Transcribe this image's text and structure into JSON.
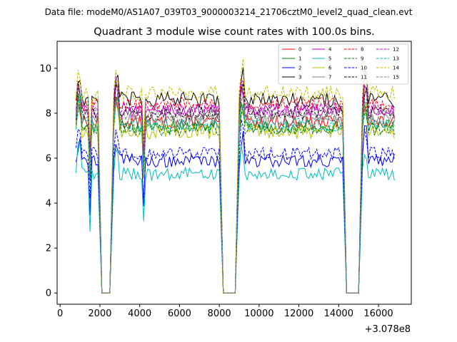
{
  "suptitle": "Data file: modeM0/AS1A07_039T03_9000003214_21706cztM0_level2_quad_clean.evt",
  "chart_data": {
    "type": "line",
    "title": "Quadrant 3 module wise count rates with 100.0s bins.",
    "xlabel": "",
    "ylabel": "",
    "x_offset_label": "+3.078e8",
    "xlim": [
      -150,
      17650
    ],
    "ylim": [
      -0.5,
      11.2
    ],
    "x_ticks": [
      0,
      2000,
      4000,
      6000,
      8000,
      10000,
      12000,
      14000,
      16000
    ],
    "x_tick_labels": [
      "0",
      "2000",
      "4000",
      "6000",
      "8000",
      "10000",
      "12000",
      "14000",
      "16000"
    ],
    "y_ticks": [
      0,
      2,
      4,
      6,
      8,
      10
    ],
    "y_tick_labels": [
      "0",
      "2",
      "4",
      "6",
      "8",
      "10"
    ],
    "x_start": 800,
    "x_end": 16800,
    "x_step": 100,
    "segments": [
      [
        800,
        1900
      ],
      [
        2700,
        8000
      ],
      [
        9000,
        14200
      ],
      [
        15200,
        16800
      ]
    ],
    "gaps": [
      [
        2100,
        2500
      ],
      [
        8200,
        8800
      ],
      [
        14400,
        15000
      ]
    ],
    "dips": [
      1500,
      4200
    ],
    "legend_location": "top-right",
    "series": [
      {
        "name": "0",
        "color": "#ff0000",
        "dash": "solid",
        "level": 7.6,
        "noise": 0.3
      },
      {
        "name": "1",
        "color": "#008000",
        "dash": "solid",
        "level": 7.4,
        "noise": 0.3
      },
      {
        "name": "2",
        "color": "#0000ff",
        "dash": "solid",
        "level": 5.9,
        "noise": 0.3
      },
      {
        "name": "3",
        "color": "#000000",
        "dash": "solid",
        "level": 8.6,
        "noise": 0.35
      },
      {
        "name": "4",
        "color": "#bf00bf",
        "dash": "solid",
        "level": 8.1,
        "noise": 0.3
      },
      {
        "name": "5",
        "color": "#00bfbf",
        "dash": "solid",
        "level": 5.3,
        "noise": 0.3
      },
      {
        "name": "6",
        "color": "#bfbf00",
        "dash": "solid",
        "level": 7.2,
        "noise": 0.35
      },
      {
        "name": "7",
        "color": "#808080",
        "dash": "solid",
        "level": 7.7,
        "noise": 0.3
      },
      {
        "name": "8",
        "color": "#ff0000",
        "dash": "dashed",
        "level": 8.4,
        "noise": 0.3
      },
      {
        "name": "9",
        "color": "#008000",
        "dash": "dashed",
        "level": 7.3,
        "noise": 0.3
      },
      {
        "name": "10",
        "color": "#0000ff",
        "dash": "dashed",
        "level": 6.2,
        "noise": 0.3
      },
      {
        "name": "11",
        "color": "#000000",
        "dash": "dashed",
        "level": 8.0,
        "noise": 0.3
      },
      {
        "name": "12",
        "color": "#bf00bf",
        "dash": "dashed",
        "level": 8.2,
        "noise": 0.3
      },
      {
        "name": "13",
        "color": "#00bfbf",
        "dash": "dashed",
        "level": 7.5,
        "noise": 0.3
      },
      {
        "name": "14",
        "color": "#bfbf00",
        "dash": "dashed",
        "level": 8.9,
        "noise": 0.35
      },
      {
        "name": "15",
        "color": "#808080",
        "dash": "dashed",
        "level": 7.9,
        "noise": 0.3
      }
    ]
  }
}
